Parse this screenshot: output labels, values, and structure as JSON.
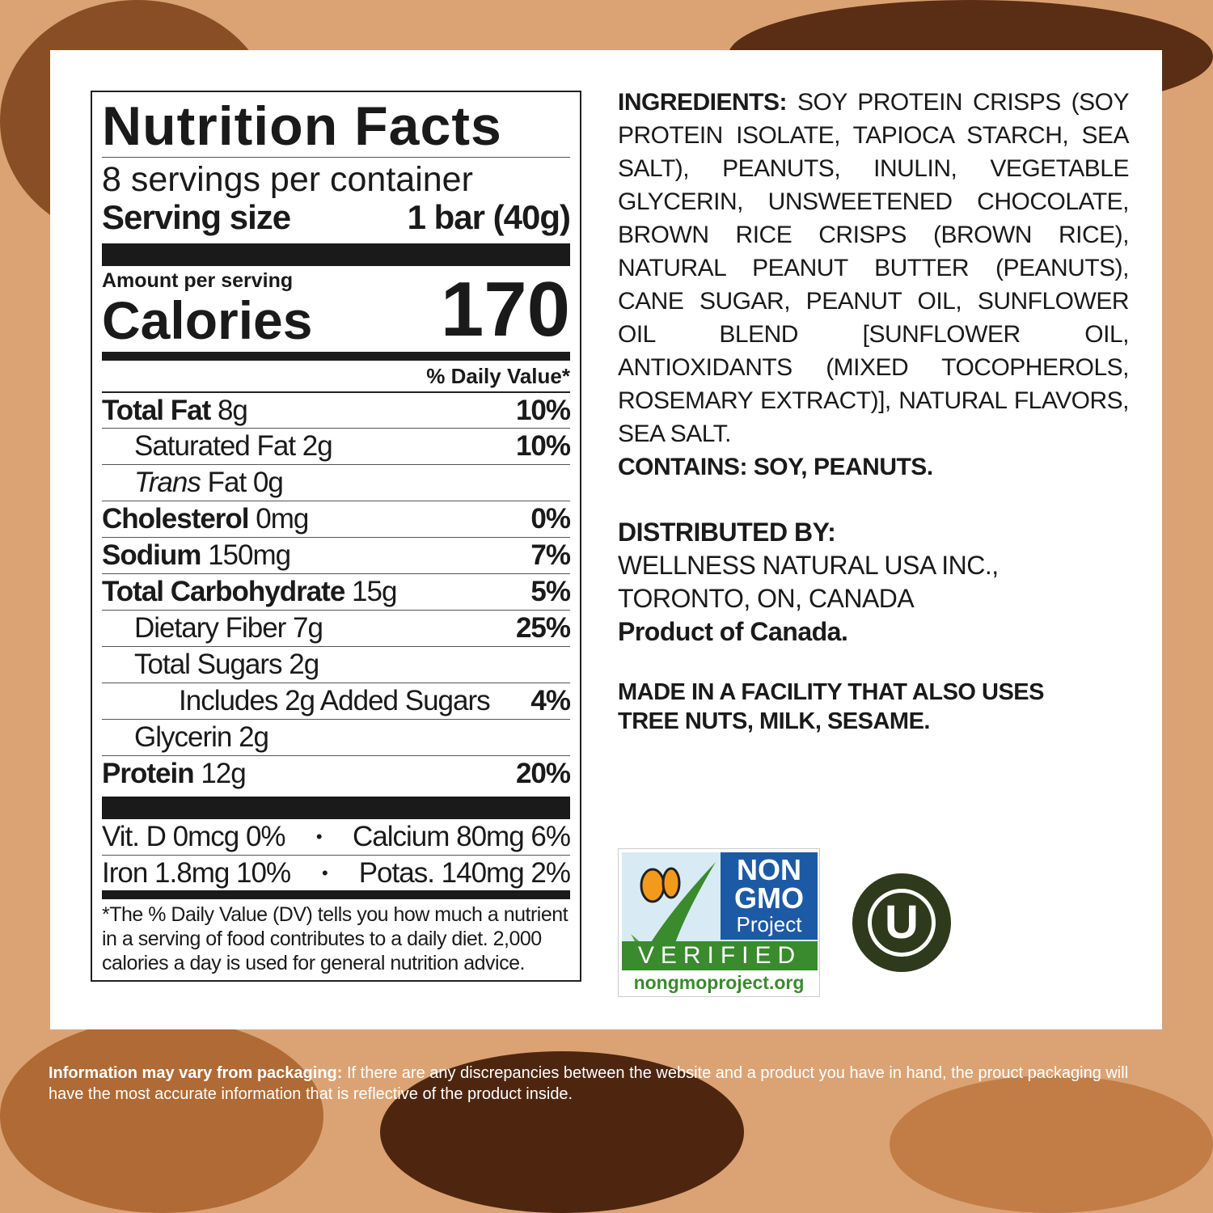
{
  "nutrition": {
    "title": "Nutrition Facts",
    "servings": "8 servings per container",
    "serving_size_label": "Serving size",
    "serving_size_value": "1 bar (40g)",
    "amount_per_serving": "Amount per serving",
    "calories_label": "Calories",
    "calories_value": "170",
    "dv_header": "% Daily Value*",
    "rows": [
      {
        "name": "Total Fat",
        "amount": "8g",
        "dv": "10%"
      },
      {
        "name": "Saturated Fat 2g",
        "amount": "",
        "dv": "10%"
      },
      {
        "name": "Trans",
        "amount": "Fat 0g",
        "dv": ""
      },
      {
        "name": "Cholesterol",
        "amount": "0mg",
        "dv": "0%"
      },
      {
        "name": "Sodium",
        "amount": "150mg",
        "dv": "7%"
      },
      {
        "name": "Total Carbohydrate",
        "amount": "15g",
        "dv": "5%"
      },
      {
        "name": "Dietary Fiber 7g",
        "amount": "",
        "dv": "25%"
      },
      {
        "name": "Total Sugars 2g",
        "amount": "",
        "dv": ""
      },
      {
        "name": "Includes 2g Added Sugars",
        "amount": "",
        "dv": "4%"
      },
      {
        "name": "Glycerin 2g",
        "amount": "",
        "dv": ""
      },
      {
        "name": "Protein",
        "amount": "12g",
        "dv": "20%"
      }
    ],
    "vitamins": [
      {
        "left": "Vit. D 0mcg 0%",
        "right": "Calcium 80mg 6%"
      },
      {
        "left": "Iron 1.8mg 10%",
        "right": "Potas. 140mg 2%"
      }
    ],
    "bullet": "•",
    "footnote": "*The % Daily Value (DV) tells you how much a nutrient in a serving of food contributes to a daily diet. 2,000 calories a day is used for general nutrition advice."
  },
  "ingredients": {
    "label": "INGREDIENTS:",
    "text": "SOY PROTEIN CRISPS (SOY PROTEIN ISOLATE, TAPIOCA STARCH, SEA SALT), PEANUTS, INULIN, VEGETABLE GLYCERIN, UNSWEETENED CHOCOLATE, BROWN RICE CRISPS (BROWN RICE), NATURAL PEANUT BUTTER (PEANUTS), CANE SUGAR, PEANUT OIL, SUNFLOWER OIL BLEND [SUNFLOWER OIL, ANTIOXIDANTS (MIXED TOCOPHEROLS, ROSEMARY EXTRACT)], NATURAL FLAVORS, SEA SALT.",
    "contains": "CONTAINS: SOY, PEANUTS."
  },
  "distributor": {
    "label": "DISTRIBUTED BY:",
    "line1": "WELLNESS NATURAL USA INC.,",
    "line2": "TORONTO, ON, CANADA",
    "origin": "Product of Canada."
  },
  "allergen_note": "MADE IN A FACILITY THAT ALSO USES TREE NUTS, MILK, SESAME.",
  "badges": {
    "nongmo": {
      "line1": "NON",
      "line2": "GMO",
      "line3": "Project",
      "verified": "VERIFIED",
      "url": "nongmoproject.org"
    },
    "kosher": {
      "symbol": "U"
    }
  },
  "footer": {
    "bold": "Information may vary from packaging:",
    "text": " If there are any discrepancies between the website and a product you have in hand, the prouct packaging will have the most accurate information that is reflective of the product inside."
  },
  "colors": {
    "background": "#dba374",
    "dark_brown": "#5a2e14",
    "nongmo_blue": "#1d5aa6",
    "nongmo_green": "#3a8a2e",
    "kosher": "#2f3a1c"
  }
}
